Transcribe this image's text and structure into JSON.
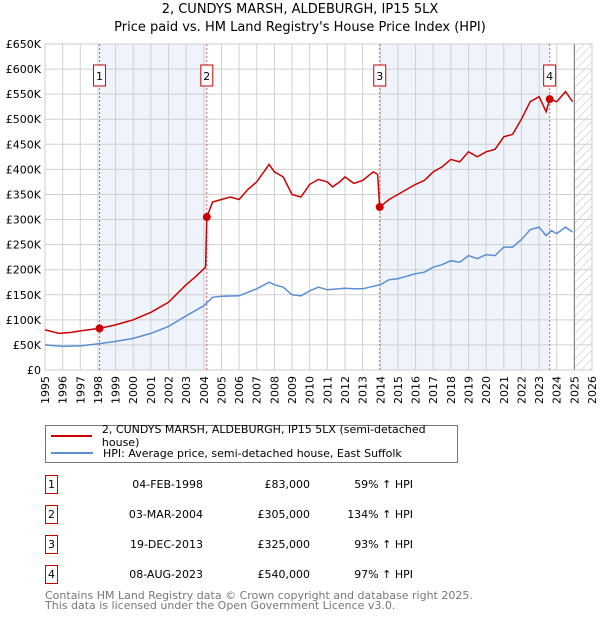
{
  "title": "2, CUNDYS MARSH, ALDEBURGH, IP15 5LX",
  "subtitle": "Price paid vs. HM Land Registry's House Price Index (HPI)",
  "chart_data": {
    "type": "line",
    "title": "2, CUNDYS MARSH, ALDEBURGH, IP15 5LX",
    "subtitle": "Price paid vs. HM Land Registry's House Price Index (HPI)",
    "xlim": [
      1995,
      2026
    ],
    "ylim": [
      0,
      650000
    ],
    "grid": true,
    "legend_placement": "below",
    "x_ticks": [
      "1995",
      "1996",
      "1997",
      "1998",
      "1999",
      "2000",
      "2001",
      "2002",
      "2003",
      "2004",
      "2005",
      "2006",
      "2007",
      "2008",
      "2009",
      "2010",
      "2011",
      "2012",
      "2013",
      "2014",
      "2015",
      "2016",
      "2017",
      "2018",
      "2019",
      "2020",
      "2021",
      "2022",
      "2023",
      "2024",
      "2025",
      "2026"
    ],
    "y_ticks": [
      {
        "v": 0,
        "label": "£0"
      },
      {
        "v": 50000,
        "label": "£50K"
      },
      {
        "v": 100000,
        "label": "£100K"
      },
      {
        "v": 150000,
        "label": "£150K"
      },
      {
        "v": 200000,
        "label": "£200K"
      },
      {
        "v": 250000,
        "label": "£250K"
      },
      {
        "v": 300000,
        "label": "£300K"
      },
      {
        "v": 350000,
        "label": "£350K"
      },
      {
        "v": 400000,
        "label": "£400K"
      },
      {
        "v": 450000,
        "label": "£450K"
      },
      {
        "v": 500000,
        "label": "£500K"
      },
      {
        "v": 550000,
        "label": "£550K"
      },
      {
        "v": 600000,
        "label": "£600K"
      },
      {
        "v": 650000,
        "label": "£650K"
      }
    ],
    "data_end": 2025,
    "shaded_ranges": [
      [
        1998.09,
        2004.17
      ],
      [
        2013.97,
        2023.6
      ]
    ],
    "series": [
      {
        "name": "2, CUNDYS MARSH, ALDEBURGH, IP15 5LX (semi-detached house)",
        "color": "#cc0000",
        "x": [
          1995,
          1995.8,
          1996.5,
          1997,
          1998.09,
          1999,
          2000,
          2001,
          2002,
          2003,
          2003.5,
          2004.1,
          2004.17,
          2004.5,
          2005,
          2005.5,
          2006,
          2006.5,
          2007,
          2007.7,
          2008,
          2008.5,
          2009,
          2009.5,
          2010,
          2010.5,
          2011,
          2011.3,
          2011.7,
          2012,
          2012.5,
          2013,
          2013.6,
          2013.85,
          2013.97,
          2014.5,
          2015,
          2015.5,
          2016,
          2016.5,
          2017,
          2017.5,
          2018,
          2018.5,
          2019,
          2019.5,
          2020,
          2020.5,
          2021,
          2021.5,
          2022,
          2022.5,
          2023,
          2023.4,
          2023.6,
          2024,
          2024.5,
          2024.9
        ],
        "y": [
          80000,
          73000,
          75000,
          78000,
          83000,
          90000,
          100000,
          115000,
          135000,
          170000,
          185000,
          205000,
          305000,
          335000,
          340000,
          345000,
          340000,
          360000,
          375000,
          410000,
          395000,
          385000,
          350000,
          345000,
          370000,
          380000,
          375000,
          365000,
          375000,
          385000,
          372000,
          378000,
          395000,
          390000,
          325000,
          340000,
          350000,
          360000,
          370000,
          378000,
          395000,
          405000,
          420000,
          415000,
          435000,
          425000,
          435000,
          440000,
          465000,
          470000,
          500000,
          535000,
          545000,
          515000,
          540000,
          535000,
          555000,
          535000
        ]
      },
      {
        "name": "HPI: Average price, semi-detached house, East Suffolk",
        "color": "#5b8fd4",
        "x": [
          1995,
          1996,
          1997,
          1998,
          1999,
          2000,
          2001,
          2002,
          2003,
          2004,
          2004.5,
          2005,
          2006,
          2007,
          2007.7,
          2008,
          2008.5,
          2009,
          2009.5,
          2010,
          2010.5,
          2011,
          2012,
          2012.5,
          2013,
          2014,
          2014.5,
          2015,
          2016,
          2016.5,
          2017,
          2017.5,
          2018,
          2018.5,
          2019,
          2019.5,
          2020,
          2020.5,
          2021,
          2021.5,
          2022,
          2022.5,
          2023,
          2023.4,
          2023.7,
          2024,
          2024.5,
          2024.9
        ],
        "y": [
          50000,
          47000,
          48000,
          52000,
          57000,
          63000,
          73000,
          87000,
          108000,
          128000,
          145000,
          147000,
          148000,
          162000,
          175000,
          170000,
          165000,
          150000,
          148000,
          158000,
          165000,
          160000,
          163000,
          162000,
          162000,
          170000,
          180000,
          182000,
          192000,
          195000,
          205000,
          210000,
          218000,
          215000,
          228000,
          222000,
          230000,
          228000,
          245000,
          245000,
          260000,
          280000,
          285000,
          268000,
          278000,
          272000,
          285000,
          275000
        ]
      }
    ],
    "sales": [
      {
        "n": "1",
        "x": 1998.09,
        "y": 83000
      },
      {
        "n": "2",
        "x": 2004.17,
        "y": 305000
      },
      {
        "n": "3",
        "x": 2013.97,
        "y": 325000
      },
      {
        "n": "4",
        "x": 2023.6,
        "y": 540000
      }
    ]
  },
  "legend": {
    "property": "2, CUNDYS MARSH, ALDEBURGH, IP15 5LX (semi-detached house)",
    "hpi": "HPI: Average price, semi-detached house, East Suffolk"
  },
  "transactions": [
    {
      "n": "1",
      "date": "04-FEB-1998",
      "price": "£83,000",
      "hpi": "59% ↑ HPI"
    },
    {
      "n": "2",
      "date": "03-MAR-2004",
      "price": "£305,000",
      "hpi": "134% ↑ HPI"
    },
    {
      "n": "3",
      "date": "19-DEC-2013",
      "price": "£325,000",
      "hpi": "93% ↑ HPI"
    },
    {
      "n": "4",
      "date": "08-AUG-2023",
      "price": "£540,000",
      "hpi": "97% ↑ HPI"
    }
  ],
  "footer": {
    "line1": "Contains HM Land Registry data © Crown copyright and database right 2025.",
    "line2": "This data is licensed under the Open Government Licence v3.0."
  }
}
